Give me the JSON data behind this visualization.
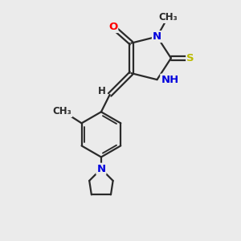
{
  "bg_color": "#ebebeb",
  "bond_color": "#2a2a2a",
  "bond_width": 1.6,
  "atom_colors": {
    "O": "#ff0000",
    "N": "#0000dd",
    "S": "#bbbb00",
    "C": "#2a2a2a",
    "H": "#2a2a2a"
  },
  "font_size_atom": 9.5,
  "font_size_small": 8.5,
  "xlim": [
    0,
    10
  ],
  "ylim": [
    0,
    11
  ]
}
